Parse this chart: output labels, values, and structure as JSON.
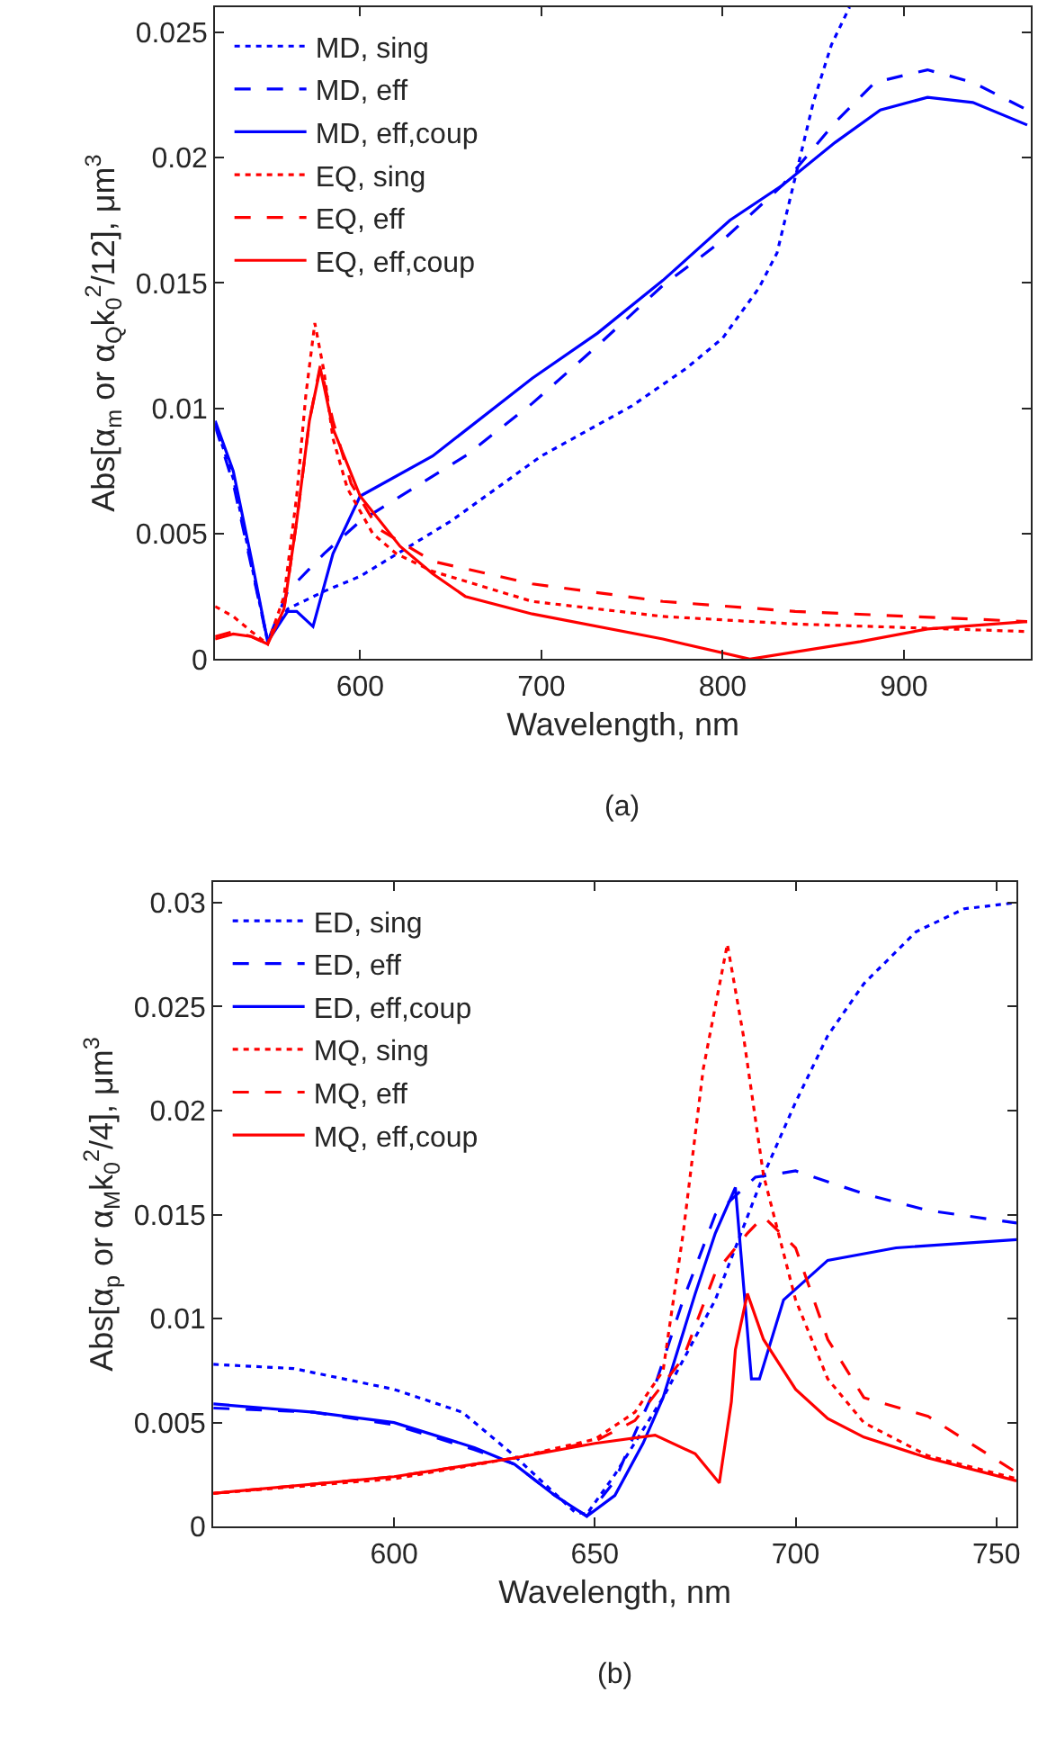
{
  "chart_data": [
    {
      "type": "line",
      "xlabel": "Wavelength, nm",
      "ylabel": "Abs[α$_{m}$ or α$_{Q}$k$_{0}$$^{2}$/12], μm$^{3}$",
      "annotations": [
        "(a)"
      ],
      "xlim": [
        520,
        970
      ],
      "ylim": [
        0,
        0.026
      ],
      "xticks": [
        600,
        700,
        800,
        900
      ],
      "yticks": [
        0,
        0.005,
        0.01,
        0.015,
        0.02,
        0.025
      ],
      "legend": "top left",
      "series": [
        {
          "name": "MD, sing",
          "color": "#0000ff",
          "line_style": "dotted",
          "x": [
            520,
            530,
            540,
            549,
            560,
            580,
            600,
            650,
            700,
            750,
            780,
            800,
            820,
            830,
            840,
            850,
            860,
            870
          ],
          "values": [
            0.0094,
            0.0072,
            0.0038,
            0.0007,
            0.002,
            0.0027,
            0.0033,
            0.0055,
            0.0081,
            0.0101,
            0.0116,
            0.0128,
            0.0148,
            0.0162,
            0.0192,
            0.0222,
            0.0245,
            0.026
          ]
        },
        {
          "name": "MD, eff",
          "color": "#0000ff",
          "line_style": "dashed",
          "x": [
            520,
            530,
            540,
            549,
            560,
            580,
            600,
            658,
            695,
            731,
            767,
            800,
            833,
            862,
            884,
            913,
            938,
            968
          ],
          "values": [
            0.0093,
            0.007,
            0.0037,
            0.0007,
            0.0027,
            0.0042,
            0.0055,
            0.0081,
            0.0102,
            0.0125,
            0.0149,
            0.0167,
            0.0189,
            0.0214,
            0.023,
            0.0235,
            0.023,
            0.0219
          ]
        },
        {
          "name": "MD, eff,coup",
          "color": "#0000ff",
          "line_style": "solid",
          "x": [
            520,
            530,
            540,
            549,
            560,
            565,
            574,
            585,
            600,
            640,
            695,
            731,
            767,
            804,
            833,
            862,
            887,
            913,
            938,
            968
          ],
          "values": [
            0.0095,
            0.0075,
            0.004,
            0.0007,
            0.0019,
            0.0019,
            0.0013,
            0.0042,
            0.0065,
            0.0081,
            0.0112,
            0.013,
            0.0151,
            0.0175,
            0.0189,
            0.0206,
            0.0219,
            0.0224,
            0.0222,
            0.0213
          ]
        },
        {
          "name": "EQ, sing",
          "color": "#ff0000",
          "line_style": "dotted",
          "x": [
            520,
            530,
            540,
            549,
            558,
            565,
            570,
            575,
            580,
            585,
            593,
            607,
            620,
            640,
            695,
            767,
            840,
            968
          ],
          "values": [
            0.0021,
            0.0017,
            0.0011,
            0.0006,
            0.0025,
            0.0065,
            0.0105,
            0.0134,
            0.0115,
            0.0088,
            0.0068,
            0.005,
            0.0042,
            0.0035,
            0.0023,
            0.0017,
            0.0014,
            0.0011
          ]
        },
        {
          "name": "EQ, eff",
          "color": "#ff0000",
          "line_style": "dashed",
          "x": [
            520,
            530,
            540,
            549,
            558,
            565,
            572,
            578,
            585,
            595,
            610,
            640,
            695,
            767,
            840,
            968
          ],
          "values": [
            0.0009,
            0.0011,
            0.0009,
            0.0006,
            0.002,
            0.0055,
            0.0095,
            0.0117,
            0.0095,
            0.007,
            0.0052,
            0.0039,
            0.003,
            0.0023,
            0.0019,
            0.0015
          ]
        },
        {
          "name": "EQ, eff,coup",
          "color": "#ff0000",
          "line_style": "solid",
          "x": [
            520,
            530,
            540,
            549,
            558,
            565,
            572,
            578,
            585,
            600,
            622,
            640,
            658,
            695,
            767,
            815,
            876,
            913,
            968
          ],
          "values": [
            0.0008,
            0.001,
            0.0009,
            0.0006,
            0.002,
            0.0055,
            0.0095,
            0.0116,
            0.0092,
            0.0065,
            0.0045,
            0.0034,
            0.0025,
            0.0018,
            0.0008,
            0.0,
            0.0007,
            0.0012,
            0.0015
          ]
        }
      ]
    },
    {
      "type": "line",
      "xlabel": "Wavelength, nm",
      "ylabel": "Abs[α$_{p}$ or α$_{M}$k$_{0}$$^{2}$/4], μm$^{3}$",
      "annotations": [
        "(b)"
      ],
      "xlim": [
        555,
        755
      ],
      "ylim": [
        0,
        0.031
      ],
      "xticks": [
        600,
        650,
        700,
        750
      ],
      "yticks": [
        0,
        0.005,
        0.01,
        0.015,
        0.02,
        0.025,
        0.03
      ],
      "legend": "top left",
      "series": [
        {
          "name": "ED, sing",
          "color": "#0000ff",
          "line_style": "dotted",
          "x": [
            555,
            575,
            590,
            600,
            617,
            630,
            645,
            648,
            655,
            667,
            680,
            692,
            700,
            708,
            717,
            730,
            742,
            755
          ],
          "values": [
            0.0078,
            0.0076,
            0.007,
            0.0066,
            0.0055,
            0.0034,
            0.0007,
            0.0006,
            0.0025,
            0.0062,
            0.0109,
            0.0169,
            0.0204,
            0.0236,
            0.0261,
            0.0286,
            0.0297,
            0.03
          ]
        },
        {
          "name": "ED, eff",
          "color": "#0000ff",
          "line_style": "dashed",
          "x": [
            555,
            580,
            600,
            620,
            630,
            640,
            648,
            655,
            660,
            664,
            672,
            680,
            690,
            700,
            717,
            733,
            755
          ],
          "values": [
            0.0057,
            0.0055,
            0.0049,
            0.0037,
            0.003,
            0.0015,
            0.0005,
            0.0022,
            0.0045,
            0.0062,
            0.0109,
            0.015,
            0.0168,
            0.0171,
            0.016,
            0.0152,
            0.0146
          ]
        },
        {
          "name": "ED, eff,coup",
          "color": "#0000ff",
          "line_style": "solid",
          "x": [
            555,
            580,
            600,
            620,
            630,
            640,
            648,
            655,
            662,
            667,
            675,
            680,
            685,
            689,
            691,
            697,
            708,
            725,
            755
          ],
          "values": [
            0.0059,
            0.0055,
            0.005,
            0.0038,
            0.003,
            0.0015,
            0.0005,
            0.0015,
            0.004,
            0.0062,
            0.0112,
            0.0141,
            0.0163,
            0.0071,
            0.0071,
            0.0109,
            0.0128,
            0.0134,
            0.0138
          ]
        },
        {
          "name": "MQ, sing",
          "color": "#ff0000",
          "line_style": "dotted",
          "x": [
            555,
            600,
            630,
            650,
            660,
            667,
            672,
            677,
            683,
            687,
            692,
            700,
            708,
            717,
            733,
            755
          ],
          "values": [
            0.0016,
            0.0023,
            0.0033,
            0.0042,
            0.0055,
            0.0075,
            0.0141,
            0.022,
            0.028,
            0.0236,
            0.0169,
            0.0109,
            0.0071,
            0.005,
            0.0034,
            0.0023
          ]
        },
        {
          "name": "MQ, eff",
          "color": "#ff0000",
          "line_style": "dashed",
          "x": [
            555,
            600,
            630,
            650,
            660,
            672,
            680,
            688,
            692,
            700,
            708,
            717,
            733,
            755
          ],
          "values": [
            0.0016,
            0.0024,
            0.0033,
            0.0041,
            0.0051,
            0.0081,
            0.0122,
            0.0141,
            0.0149,
            0.0134,
            0.009,
            0.0062,
            0.0053,
            0.0026
          ]
        },
        {
          "name": "MQ, eff,coup",
          "color": "#ff0000",
          "line_style": "solid",
          "x": [
            555,
            600,
            630,
            650,
            665,
            675,
            681,
            684,
            685,
            688,
            692,
            700,
            708,
            717,
            733,
            755
          ],
          "values": [
            0.0016,
            0.0024,
            0.0033,
            0.004,
            0.0044,
            0.0035,
            0.0021,
            0.006,
            0.0085,
            0.0112,
            0.009,
            0.0066,
            0.0052,
            0.0043,
            0.0033,
            0.0022
          ]
        }
      ]
    }
  ]
}
